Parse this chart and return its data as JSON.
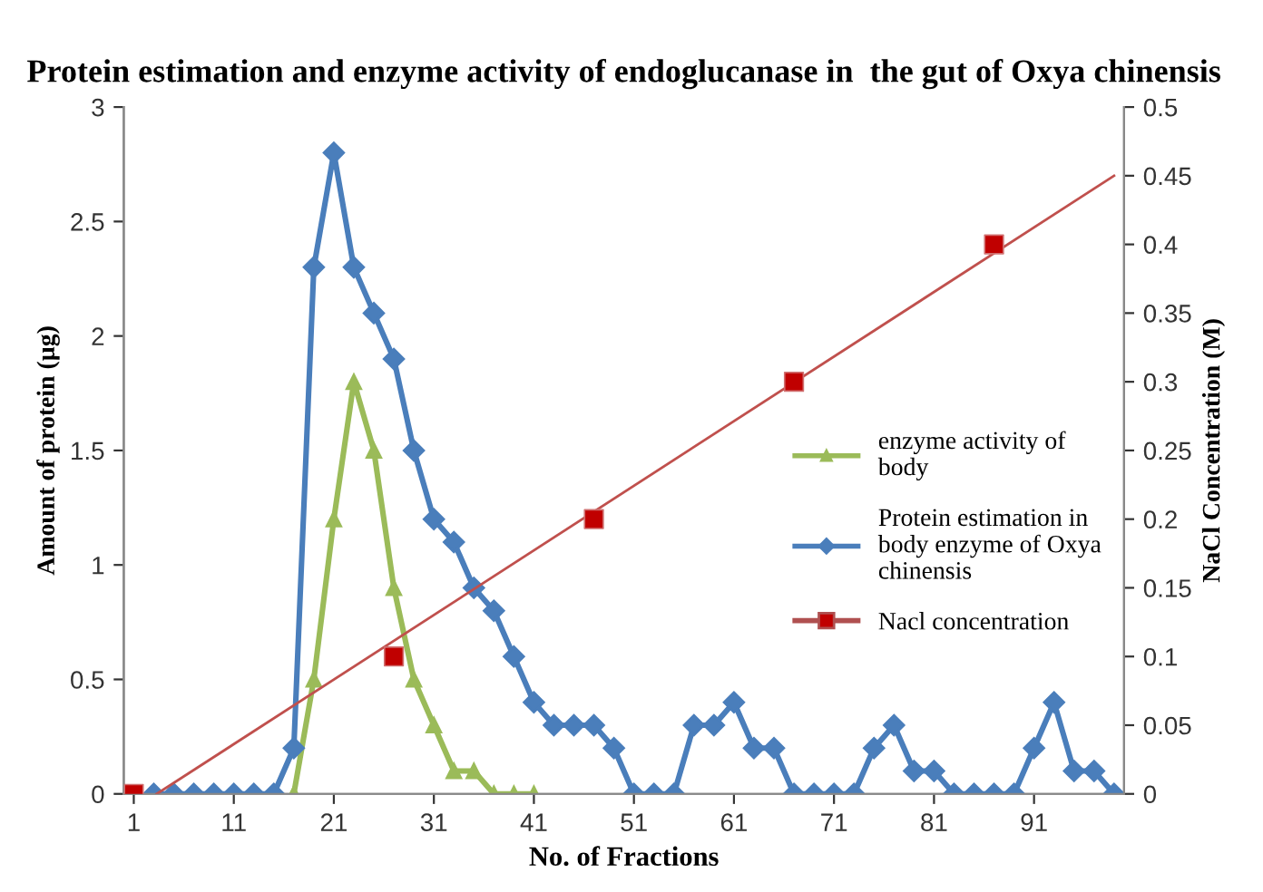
{
  "chart_data": {
    "type": "line",
    "title": "Protein estimation and enzyme activity of endoglucanase in  the gut of Oxya chinensis",
    "xlabel": "No. of Fractions",
    "ylabel": "Amount of protein (µg)",
    "y2label": "NaCl Concentration (M)",
    "xlim": [
      0,
      100
    ],
    "xticks": [
      1,
      11,
      21,
      31,
      41,
      51,
      61,
      71,
      81,
      91
    ],
    "ylim": [
      0,
      3
    ],
    "yticks": [
      0,
      0.5,
      1,
      1.5,
      2,
      2.5,
      3
    ],
    "y2lim": [
      0,
      0.5
    ],
    "y2ticks": [
      0,
      0.05,
      0.1,
      0.15,
      0.2,
      0.25,
      0.3,
      0.35,
      0.4,
      0.45,
      0.5
    ],
    "grid": false,
    "legend": "right",
    "series": [
      {
        "name": "enzyme activity of body",
        "marker": "triangle",
        "color": "#9bbb59",
        "x": [
          17,
          19,
          21,
          23,
          25,
          27,
          29,
          31,
          33,
          35,
          37,
          39,
          41
        ],
        "values": [
          0,
          0.5,
          1.2,
          1.8,
          1.5,
          0.9,
          0.5,
          0.3,
          0.1,
          0.1,
          0,
          0,
          0
        ]
      },
      {
        "name": "Protein estimation in body enzyme of Oxya chinensis",
        "marker": "diamond",
        "color": "#4a7ebb",
        "x": [
          3,
          5,
          7,
          9,
          11,
          13,
          15,
          17,
          19,
          21,
          23,
          25,
          27,
          29,
          31,
          33,
          35,
          37,
          39,
          41,
          43,
          45,
          47,
          49,
          51,
          53,
          55,
          57,
          59,
          61,
          63,
          65,
          67,
          69,
          71,
          73,
          75,
          77,
          79,
          81,
          83,
          85,
          87,
          89,
          91,
          93,
          95,
          97,
          99
        ],
        "values": [
          0,
          0,
          0,
          0,
          0,
          0,
          0,
          0.2,
          2.3,
          2.8,
          2.3,
          2.1,
          1.9,
          1.5,
          1.2,
          1.1,
          0.9,
          0.8,
          0.6,
          0.4,
          0.3,
          0.3,
          0.3,
          0.2,
          0,
          0,
          0,
          0.3,
          0.3,
          0.4,
          0.2,
          0.2,
          0,
          0,
          0,
          0,
          0.2,
          0.3,
          0.1,
          0.1,
          0,
          0,
          0,
          0,
          0.2,
          0.4,
          0.1,
          0.1,
          0
        ]
      },
      {
        "name": "Nacl concentration",
        "type": "scatter",
        "marker": "square",
        "color": "#c00000",
        "axis": "y2",
        "x": [
          1,
          27,
          47,
          67,
          87
        ],
        "values": [
          0,
          0.1,
          0.2,
          0.3,
          0.4
        ]
      },
      {
        "type": "line",
        "marker": "none",
        "color": "#c0504d",
        "axis": "y2",
        "x": [
          3.3,
          99
        ],
        "values": [
          0,
          0.45
        ]
      }
    ]
  }
}
